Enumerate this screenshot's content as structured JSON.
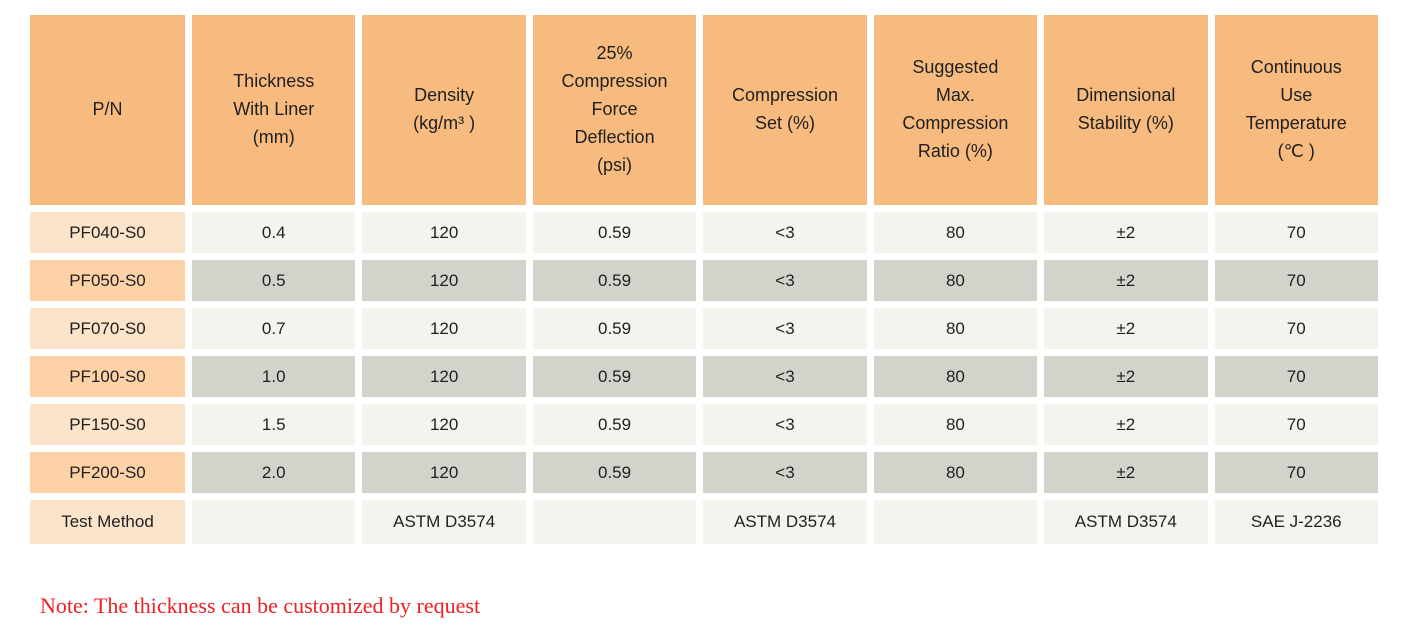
{
  "table": {
    "headers": [
      "P/N",
      "Thickness\nWith Liner\n(mm)",
      "Density\n(kg/m³ )",
      "25%\nCompression\nForce\nDeflection\n(psi)",
      "Compression\nSet (%)",
      "Suggested\nMax.\nCompression\nRatio (%)",
      "Dimensional\nStability (%)",
      "Continuous\nUse\nTemperature\n(℃ )"
    ],
    "rows": [
      {
        "cells": [
          "PF040-S0",
          "0.4",
          "120",
          "0.59",
          "<3",
          "80",
          "±2",
          "70"
        ]
      },
      {
        "cells": [
          "PF050-S0",
          "0.5",
          "120",
          "0.59",
          "<3",
          "80",
          "±2",
          "70"
        ]
      },
      {
        "cells": [
          "PF070-S0",
          "0.7",
          "120",
          "0.59",
          "<3",
          "80",
          "±2",
          "70"
        ]
      },
      {
        "cells": [
          "PF100-S0",
          "1.0",
          "120",
          "0.59",
          "<3",
          "80",
          "±2",
          "70"
        ]
      },
      {
        "cells": [
          "PF150-S0",
          "1.5",
          "120",
          "0.59",
          "<3",
          "80",
          "±2",
          "70"
        ]
      },
      {
        "cells": [
          "PF200-S0",
          "2.0",
          "120",
          "0.59",
          "<3",
          "80",
          "±2",
          "70"
        ]
      },
      {
        "cells": [
          "Test Method",
          "",
          "ASTM D3574",
          "",
          "ASTM D3574",
          "",
          "ASTM D3574",
          "SAE J-2236"
        ]
      }
    ]
  },
  "note": "Note: The thickness can be customized by request",
  "colors": {
    "header_bg": "#f8bb7f",
    "pn_light": "#fce4cb",
    "pn_dark": "#fcd2a6",
    "cell_light": "#f3f4ee",
    "cell_dark": "#d2d3cb",
    "note_red": "#ec2224",
    "text": "#1f1f1f",
    "page_bg": "#ffffff"
  }
}
